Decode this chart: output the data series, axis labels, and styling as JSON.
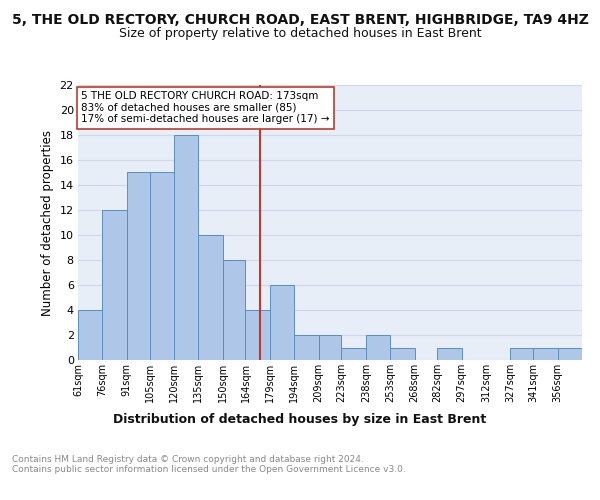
{
  "title": "5, THE OLD RECTORY, CHURCH ROAD, EAST BRENT, HIGHBRIDGE, TA9 4HZ",
  "subtitle": "Size of property relative to detached houses in East Brent",
  "xlabel": "Distribution of detached houses by size in East Brent",
  "ylabel": "Number of detached properties",
  "bin_labels": [
    "61sqm",
    "76sqm",
    "91sqm",
    "105sqm",
    "120sqm",
    "135sqm",
    "150sqm",
    "164sqm",
    "179sqm",
    "194sqm",
    "209sqm",
    "223sqm",
    "238sqm",
    "253sqm",
    "268sqm",
    "282sqm",
    "297sqm",
    "312sqm",
    "327sqm",
    "341sqm",
    "356sqm"
  ],
  "bin_edges": [
    61,
    76,
    91,
    105,
    120,
    135,
    150,
    164,
    179,
    194,
    209,
    223,
    238,
    253,
    268,
    282,
    297,
    312,
    327,
    341,
    356
  ],
  "values": [
    4,
    12,
    15,
    15,
    18,
    10,
    8,
    4,
    6,
    2,
    2,
    1,
    2,
    1,
    0,
    1,
    0,
    0,
    1,
    1,
    1
  ],
  "bar_color": "#aec6e8",
  "bar_edge_color": "#5a8fc0",
  "property_size": 173,
  "vline_color": "#c0392b",
  "annotation_text": "5 THE OLD RECTORY CHURCH ROAD: 173sqm\n83% of detached houses are smaller (85)\n17% of semi-detached houses are larger (17) →",
  "annotation_box_edge_color": "#c0392b",
  "annotation_box_face_color": "#ffffff",
  "ylim": [
    0,
    22
  ],
  "yticks": [
    0,
    2,
    4,
    6,
    8,
    10,
    12,
    14,
    16,
    18,
    20,
    22
  ],
  "grid_color": "#d0d8e8",
  "background_color": "#e8eef8",
  "footer_text": "Contains HM Land Registry data © Crown copyright and database right 2024.\nContains public sector information licensed under the Open Government Licence v3.0.",
  "title_fontsize": 10,
  "subtitle_fontsize": 9,
  "xlabel_fontsize": 9,
  "ylabel_fontsize": 8.5,
  "annotation_fontsize": 7.5
}
